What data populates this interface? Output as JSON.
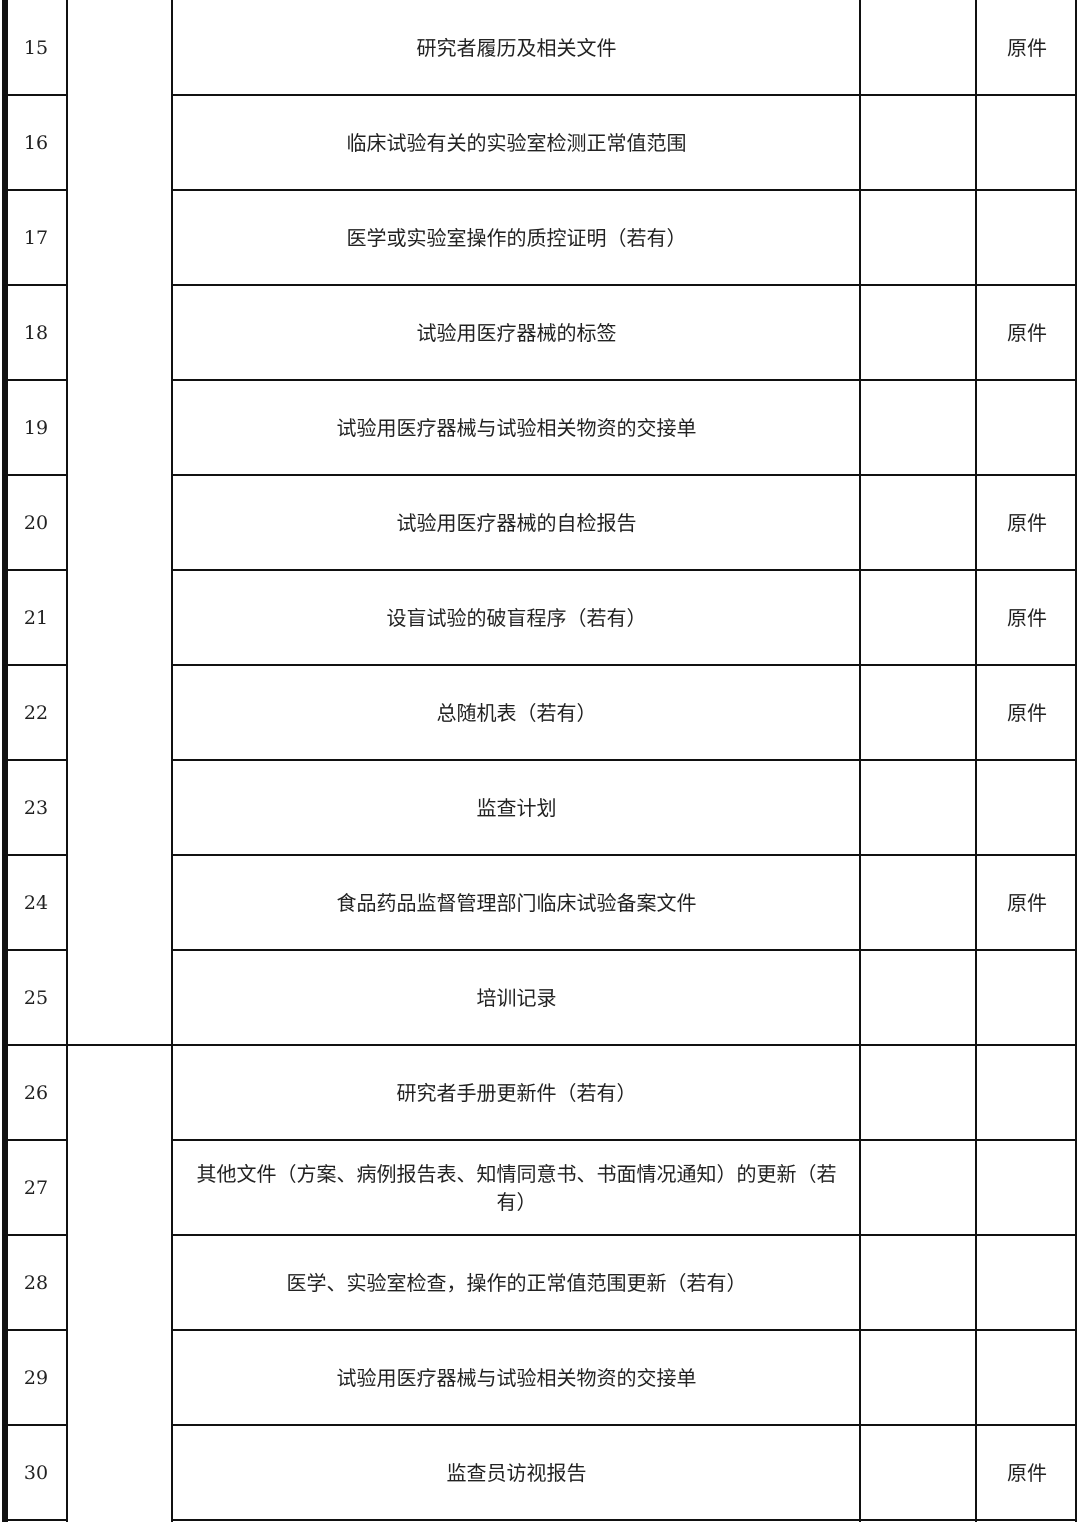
{
  "rows": [
    {
      "no": "15",
      "doc": "研究者履历及相关文件",
      "note": "原件"
    },
    {
      "no": "16",
      "doc": "临床试验有关的实验室检测正常值范围",
      "note": ""
    },
    {
      "no": "17",
      "doc": "医学或实验室操作的质控证明（若有）",
      "note": ""
    },
    {
      "no": "18",
      "doc": "试验用医疗器械的标签",
      "note": "原件"
    },
    {
      "no": "19",
      "doc": "试验用医疗器械与试验相关物资的交接单",
      "note": ""
    },
    {
      "no": "20",
      "doc": "试验用医疗器械的自检报告",
      "note": "原件"
    },
    {
      "no": "21",
      "doc": "设盲试验的破盲程序（若有）",
      "note": "原件"
    },
    {
      "no": "22",
      "doc": "总随机表（若有）",
      "note": "原件"
    },
    {
      "no": "23",
      "doc": "监查计划",
      "note": ""
    },
    {
      "no": "24",
      "doc": "食品药品监督管理部门临床试验备案文件",
      "note": "原件"
    },
    {
      "no": "25",
      "doc": "培训记录",
      "note": ""
    },
    {
      "no": "26",
      "doc": "研究者手册更新件（若有）",
      "note": ""
    },
    {
      "no": "27",
      "doc": "其他文件（方案、病例报告表、知情同意书、书面情况通知）的更新（若有）",
      "note": ""
    },
    {
      "no": "28",
      "doc": "医学、实验室检查，操作的正常值范围更新（若有）",
      "note": ""
    },
    {
      "no": "29",
      "doc": "试验用医疗器械与试验相关物资的交接单",
      "note": ""
    },
    {
      "no": "30",
      "doc": "监查员访视报告",
      "note": "原件"
    }
  ]
}
